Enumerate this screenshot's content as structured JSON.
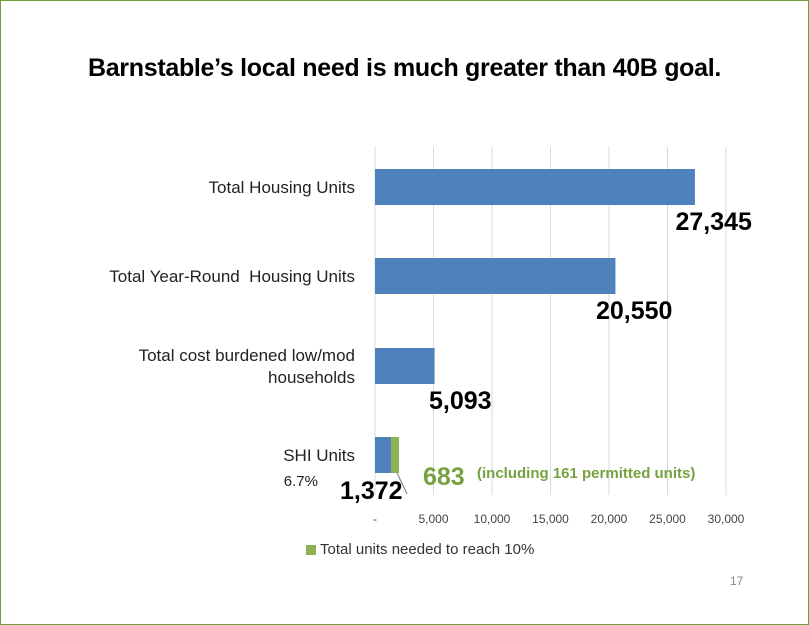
{
  "title": "Barnstable’s local need is much greater than 40B goal.",
  "page_number": "17",
  "colors": {
    "blue": "#4f81bd",
    "green": "#8db255",
    "green_text": "#77a13f",
    "border": "#70a03c",
    "grid": "#d9d9d9"
  },
  "chart_data": {
    "type": "bar",
    "orientation": "horizontal",
    "xlim": [
      0,
      30000
    ],
    "x_ticks": [
      {
        "value": 0,
        "label": "-"
      },
      {
        "value": 5000,
        "label": "5,000"
      },
      {
        "value": 10000,
        "label": "10,000"
      },
      {
        "value": 15000,
        "label": "15,000"
      },
      {
        "value": 20000,
        "label": "20,000"
      },
      {
        "value": 25000,
        "label": "25,000"
      },
      {
        "value": 30000,
        "label": "30,000"
      }
    ],
    "grid": true,
    "categories": [
      {
        "label_lines": [
          "Total Housing Units"
        ],
        "value": 27345,
        "value_label": "27,345"
      },
      {
        "label_lines": [
          "Total Year-Round  Housing Units"
        ],
        "value": 20550,
        "value_label": "20,550"
      },
      {
        "label_lines": [
          "Total cost burdened low/mod",
          "households"
        ],
        "value": 5093,
        "value_label": "5,093"
      },
      {
        "label_lines": [
          "SHI Units"
        ],
        "sublabel": "6.7%",
        "value": 1372,
        "value_label": "1,372",
        "stacked_value": 683,
        "stacked_label": "683",
        "stacked_note": "(including 161 permitted units)"
      }
    ],
    "series": [
      {
        "name": "",
        "values": [
          27345,
          20550,
          5093,
          1372
        ]
      },
      {
        "name": "Total units needed to reach 10%",
        "values": [
          0,
          0,
          0,
          683
        ]
      }
    ],
    "legend": {
      "position": "bottom",
      "entries": [
        "Total units needed to reach 10%"
      ]
    }
  }
}
